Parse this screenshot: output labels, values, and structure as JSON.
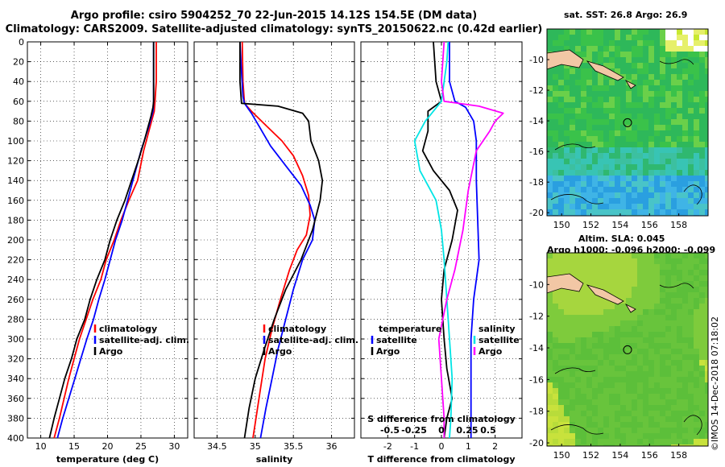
{
  "header": {
    "line1": "Argo profile: csiro 5904252_70 22-Jun-2015 14.12S 154.5E (DM data)",
    "line2": "Climatology: CARS2009. Satellite-adjusted climatology: synTS_20150622.nc (0.42d earlier)"
  },
  "colors": {
    "climatology": "#ff0000",
    "satellite": "#0000ff",
    "argo": "#000000",
    "sat_salinity": "#00e5e5",
    "argo_salinity": "#ff00ff"
  },
  "chart_data": [
    {
      "type": "line",
      "id": "temperature",
      "xlabel": "temperature (deg C)",
      "ylabel": "",
      "xlim": [
        8,
        32
      ],
      "ylim": [
        400,
        0
      ],
      "xticks": [
        10,
        15,
        20,
        25,
        30
      ],
      "yticks": [
        0,
        20,
        40,
        60,
        80,
        100,
        120,
        140,
        160,
        180,
        200,
        220,
        240,
        260,
        280,
        300,
        320,
        340,
        360,
        380,
        400
      ],
      "legend": [
        "climatology",
        "satellite-adj. clim.",
        "Argo"
      ],
      "series": [
        {
          "name": "climatology",
          "color": "#ff0000",
          "points": [
            [
              27.3,
              0
            ],
            [
              27.3,
              40
            ],
            [
              27.1,
              60
            ],
            [
              27.0,
              70
            ],
            [
              26.2,
              90
            ],
            [
              25.4,
              110
            ],
            [
              24.5,
              140
            ],
            [
              23.2,
              160
            ],
            [
              22.0,
              180
            ],
            [
              21.0,
              200
            ],
            [
              19.8,
              220
            ],
            [
              19.0,
              240
            ],
            [
              17.8,
              260
            ],
            [
              16.8,
              280
            ],
            [
              15.8,
              300
            ],
            [
              15.0,
              320
            ],
            [
              14.2,
              340
            ],
            [
              13.5,
              360
            ],
            [
              12.8,
              380
            ],
            [
              12.0,
              400
            ]
          ]
        },
        {
          "name": "satellite-adj. clim.",
          "color": "#0000ff",
          "points": [
            [
              26.9,
              0
            ],
            [
              26.9,
              40
            ],
            [
              26.9,
              60
            ],
            [
              26.8,
              70
            ],
            [
              26.2,
              85
            ],
            [
              25.0,
              110
            ],
            [
              23.8,
              140
            ],
            [
              23.0,
              160
            ],
            [
              22.2,
              180
            ],
            [
              21.2,
              200
            ],
            [
              20.4,
              220
            ],
            [
              19.6,
              240
            ],
            [
              18.7,
              260
            ],
            [
              17.9,
              280
            ],
            [
              16.9,
              300
            ],
            [
              16.0,
              320
            ],
            [
              15.1,
              340
            ],
            [
              14.2,
              360
            ],
            [
              13.3,
              380
            ],
            [
              12.5,
              400
            ]
          ]
        },
        {
          "name": "Argo",
          "color": "#000000",
          "points": [
            [
              26.9,
              0
            ],
            [
              26.9,
              30
            ],
            [
              26.9,
              60
            ],
            [
              26.8,
              66
            ],
            [
              26.5,
              75
            ],
            [
              25.5,
              100
            ],
            [
              24.6,
              120
            ],
            [
              23.6,
              140
            ],
            [
              22.6,
              160
            ],
            [
              21.4,
              180
            ],
            [
              20.4,
              200
            ],
            [
              19.6,
              220
            ],
            [
              18.4,
              240
            ],
            [
              17.4,
              260
            ],
            [
              16.6,
              280
            ],
            [
              15.4,
              300
            ],
            [
              14.6,
              320
            ],
            [
              13.6,
              340
            ],
            [
              12.8,
              360
            ],
            [
              12.0,
              380
            ],
            [
              11.3,
              400
            ]
          ]
        }
      ]
    },
    {
      "type": "line",
      "id": "salinity",
      "xlabel": "salinity",
      "ylabel": "",
      "xlim": [
        34.2,
        36.3
      ],
      "ylim": [
        400,
        0
      ],
      "xticks": [
        34.5,
        35,
        35.5,
        36
      ],
      "tick_labels": [
        "34.5",
        "35",
        "35.5",
        "36"
      ],
      "legend": [
        "climatology",
        "satellite-adj. clim.",
        "Argo"
      ],
      "series": [
        {
          "name": "climatology",
          "color": "#ff0000",
          "points": [
            [
              34.83,
              0
            ],
            [
              34.84,
              40
            ],
            [
              34.86,
              62
            ],
            [
              34.95,
              70
            ],
            [
              35.15,
              85
            ],
            [
              35.35,
              100
            ],
            [
              35.5,
              115
            ],
            [
              35.62,
              135
            ],
            [
              35.7,
              155
            ],
            [
              35.72,
              175
            ],
            [
              35.67,
              195
            ],
            [
              35.55,
              210
            ],
            [
              35.45,
              230
            ],
            [
              35.33,
              260
            ],
            [
              35.22,
              290
            ],
            [
              35.13,
              320
            ],
            [
              35.07,
              350
            ],
            [
              35.01,
              380
            ],
            [
              34.97,
              400
            ]
          ]
        },
        {
          "name": "satellite-adj. clim.",
          "color": "#0000ff",
          "points": [
            [
              34.8,
              0
            ],
            [
              34.82,
              30
            ],
            [
              34.84,
              55
            ],
            [
              34.86,
              62
            ],
            [
              34.95,
              72
            ],
            [
              35.05,
              85
            ],
            [
              35.2,
              105
            ],
            [
              35.4,
              125
            ],
            [
              35.6,
              145
            ],
            [
              35.72,
              165
            ],
            [
              35.78,
              180
            ],
            [
              35.75,
              200
            ],
            [
              35.62,
              220
            ],
            [
              35.5,
              250
            ],
            [
              35.4,
              280
            ],
            [
              35.3,
              310
            ],
            [
              35.22,
              340
            ],
            [
              35.14,
              370
            ],
            [
              35.07,
              400
            ]
          ]
        },
        {
          "name": "Argo",
          "color": "#000000",
          "points": [
            [
              34.8,
              0
            ],
            [
              34.8,
              40
            ],
            [
              34.82,
              62
            ],
            [
              35.3,
              65
            ],
            [
              35.62,
              72
            ],
            [
              35.7,
              80
            ],
            [
              35.73,
              100
            ],
            [
              35.83,
              120
            ],
            [
              35.88,
              140
            ],
            [
              35.85,
              160
            ],
            [
              35.75,
              190
            ],
            [
              35.6,
              220
            ],
            [
              35.4,
              250
            ],
            [
              35.25,
              280
            ],
            [
              35.12,
              310
            ],
            [
              35.0,
              340
            ],
            [
              34.92,
              370
            ],
            [
              34.86,
              400
            ]
          ]
        }
      ]
    },
    {
      "type": "line",
      "id": "differences",
      "xlabel": "T difference from climatology",
      "xlabel2": "S difference from climatology",
      "xlim": [
        -3,
        3
      ],
      "ylim": [
        400,
        0
      ],
      "xticks": [
        -2,
        -1,
        0,
        1,
        2
      ],
      "xticks2": [
        "-0.5",
        "-0.25",
        "0",
        "0.25",
        "0.5"
      ],
      "legend_left_title": "temperature",
      "legend_right_title": "salinity",
      "legend_left": [
        "satellite",
        "Argo"
      ],
      "legend_right": [
        "satellite",
        "Argo"
      ],
      "series": [
        {
          "name": "T satellite",
          "color": "#0000ff",
          "points": [
            [
              0.3,
              0
            ],
            [
              0.3,
              40
            ],
            [
              0.5,
              60
            ],
            [
              0.9,
              66
            ],
            [
              1.2,
              80
            ],
            [
              1.3,
              100
            ],
            [
              1.3,
              140
            ],
            [
              1.35,
              180
            ],
            [
              1.4,
              220
            ],
            [
              1.2,
              260
            ],
            [
              1.1,
              300
            ],
            [
              1.1,
              340
            ],
            [
              1.1,
              380
            ],
            [
              1.1,
              400
            ]
          ]
        },
        {
          "name": "T Argo",
          "color": "#000000",
          "points": [
            [
              -0.3,
              0
            ],
            [
              -0.2,
              40
            ],
            [
              0.0,
              60
            ],
            [
              -0.5,
              70
            ],
            [
              -0.5,
              90
            ],
            [
              -0.7,
              110
            ],
            [
              -0.3,
              130
            ],
            [
              0.3,
              150
            ],
            [
              0.6,
              170
            ],
            [
              0.4,
              200
            ],
            [
              0.1,
              230
            ],
            [
              0.0,
              260
            ],
            [
              0.1,
              300
            ],
            [
              0.2,
              330
            ],
            [
              0.4,
              360
            ],
            [
              0.2,
              380
            ],
            [
              0.1,
              400
            ]
          ]
        },
        {
          "name": "S satellite",
          "color": "#00e5e5",
          "points": [
            [
              0.25,
              0
            ],
            [
              0.2,
              20
            ],
            [
              0.0,
              60
            ],
            [
              -0.6,
              80
            ],
            [
              -1.0,
              100
            ],
            [
              -0.8,
              130
            ],
            [
              -0.2,
              160
            ],
            [
              0.0,
              190
            ],
            [
              0.1,
              220
            ],
            [
              0.2,
              260
            ],
            [
              0.3,
              300
            ],
            [
              0.4,
              340
            ],
            [
              0.35,
              380
            ],
            [
              0.3,
              400
            ]
          ]
        },
        {
          "name": "S Argo",
          "color": "#ff00ff",
          "points": [
            [
              0.1,
              0
            ],
            [
              0.0,
              40
            ],
            [
              0.1,
              60
            ],
            [
              1.4,
              65
            ],
            [
              2.3,
              72
            ],
            [
              2.0,
              80
            ],
            [
              1.8,
              90
            ],
            [
              1.3,
              110
            ],
            [
              1.0,
              150
            ],
            [
              0.8,
              190
            ],
            [
              0.5,
              230
            ],
            [
              0.2,
              260
            ],
            [
              -0.1,
              300
            ],
            [
              0.0,
              340
            ],
            [
              0.1,
              380
            ],
            [
              0.1,
              400
            ]
          ]
        }
      ]
    },
    {
      "type": "heatmap",
      "id": "sst_map",
      "title": "sat. SST: 26.8 Argo: 26.9",
      "xlim": [
        149,
        160
      ],
      "ylim": [
        -20.2,
        -8
      ],
      "xticks": [
        150,
        152,
        154,
        156,
        158
      ],
      "yticks": [
        -10,
        -12,
        -14,
        -16,
        -18,
        -20
      ],
      "argo_marker": [
        154.5,
        -14.12
      ]
    },
    {
      "type": "heatmap",
      "id": "sla_map",
      "title": "Altim. SLA: 0.045",
      "subtitle": "Argo h1000: -0.096 h2000: -0.099",
      "xlim": [
        149,
        160
      ],
      "ylim": [
        -20.2,
        -8
      ],
      "xticks": [
        150,
        152,
        154,
        156,
        158
      ],
      "yticks": [
        -10,
        -12,
        -14,
        -16,
        -18,
        -20
      ],
      "argo_marker": [
        154.5,
        -14.12
      ]
    }
  ],
  "stamp": "©IMOS 14-Dec-2018 07:18:02"
}
